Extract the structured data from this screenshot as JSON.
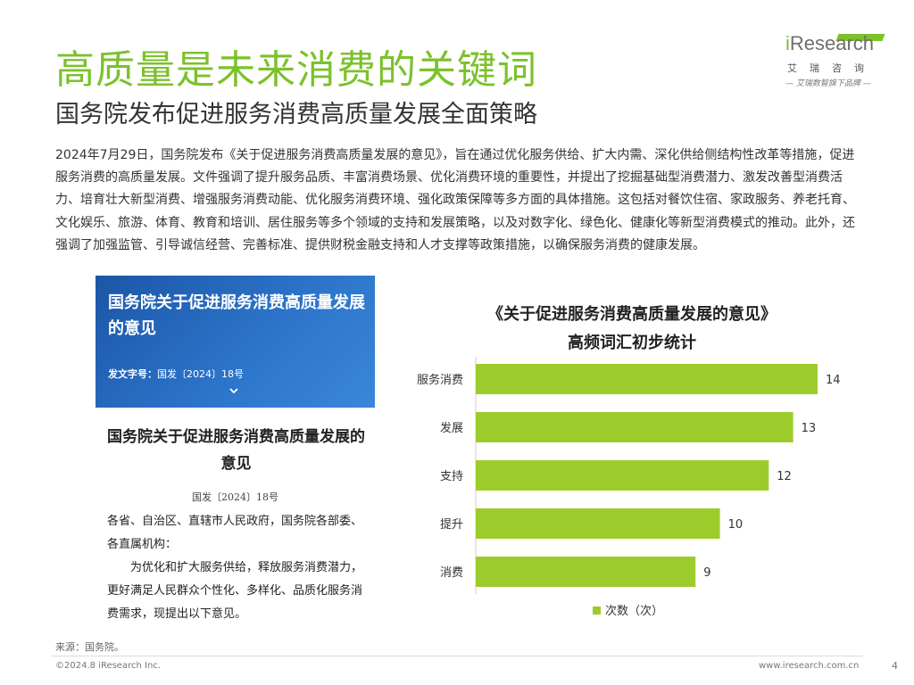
{
  "header": {
    "title": "高质量是未来消费的关键词",
    "subtitle": "国务院发布促进服务消费高质量发展全面策略"
  },
  "logo": {
    "brand_prefix": "i",
    "brand_rest": "Research",
    "cn_name": "艾瑞咨询",
    "tagline": "— 艾瑞数智旗下品牌 —"
  },
  "intro_text": "2024年7月29日，国务院发布《关于促进服务消费高质量发展的意见》，旨在通过优化服务供给、扩大内需、深化供给侧结构性改革等措施，促进服务消费的高质量发展。文件强调了提升服务品质、丰富消费场景、优化消费环境的重要性，并提出了挖掘基础型消费潜力、激发改善型消费活力、培育壮大新型消费、增强服务消费动能、优化服务消费环境、强化政策保障等多方面的具体措施。这包括对餐饮住宿、家政服务、养老托育、文化娱乐、旅游、体育、教育和培训、居住服务等多个领域的支持和发展策略，以及对数字化、绿色化、健康化等新型消费模式的推动。此外，还强调了加强监管、引导诚信经营、完善标准、提供财税金融支持和人才支撑等政策措施，以确保服务消费的健康发展。",
  "document": {
    "banner_title": "国务院关于促进服务消费高质量发展的意见",
    "doc_no_label": "发文字号：",
    "doc_no_value": "国发〔2024〕18号",
    "page_title": "国务院关于促进服务消费高质量发展的意见",
    "page_doc_no": "国发〔2024〕18号",
    "addressee": "各省、自治区、直辖市人民政府，国务院各部委、各直属机构：",
    "body": "为优化和扩大服务供给，释放服务消费潜力，更好满足人民群众个性化、多样化、品质化服务消费需求，现提出以下意见。"
  },
  "chart_data": {
    "type": "bar",
    "orientation": "horizontal",
    "title": "《关于促进服务消费高质量发展的意见》",
    "subtitle": "高频词汇初步统计",
    "categories": [
      "服务消费",
      "发展",
      "支持",
      "提升",
      "消费"
    ],
    "series": [
      {
        "name": "次数（次）",
        "values": [
          14,
          13,
          12,
          10,
          9
        ]
      }
    ],
    "xlim": [
      0,
      14
    ],
    "xlabel": "",
    "ylabel": "",
    "grid": false,
    "legend": "bottom",
    "bar_color": "#9ccc2c"
  },
  "footer": {
    "source": "来源：国务院。",
    "copyright": "©2024.8 iResearch Inc.",
    "website": "www.iresearch.com.cn",
    "page_number": "4"
  }
}
